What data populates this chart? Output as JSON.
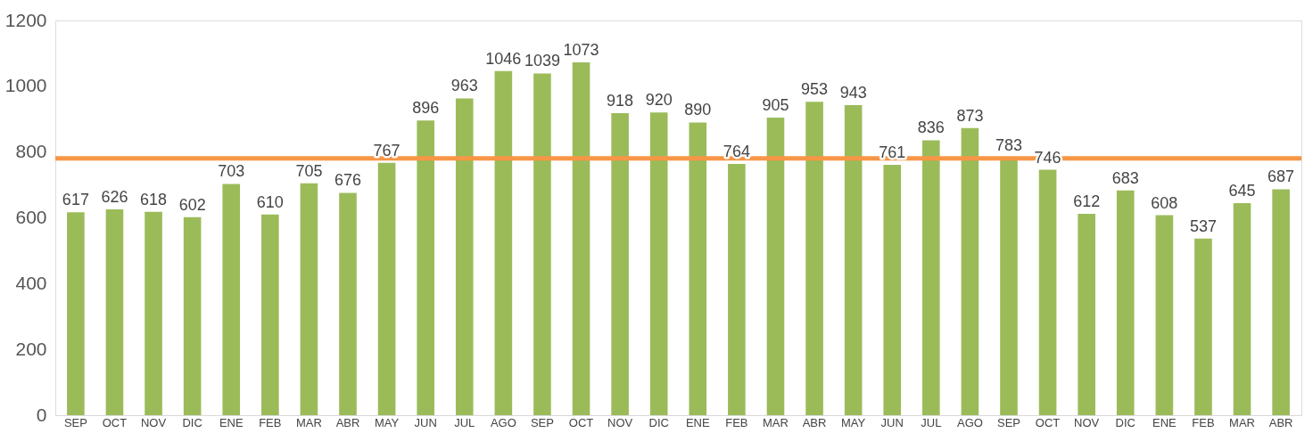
{
  "chart_data": {
    "type": "bar",
    "categories": [
      "SEP",
      "OCT",
      "NOV",
      "DIC",
      "ENE",
      "FEB",
      "MAR",
      "ABR",
      "MAY",
      "JUN",
      "JUL",
      "AGO",
      "SEP",
      "OCT",
      "NOV",
      "DIC",
      "ENE",
      "FEB",
      "MAR",
      "ABR",
      "MAY",
      "JUN",
      "JUL",
      "AGO",
      "SEP",
      "OCT",
      "NOV",
      "DIC",
      "ENE",
      "FEB",
      "MAR",
      "ABR"
    ],
    "values": [
      617,
      626,
      618,
      602,
      703,
      610,
      705,
      676,
      767,
      896,
      963,
      1046,
      1039,
      1073,
      918,
      920,
      890,
      764,
      905,
      953,
      943,
      761,
      836,
      873,
      783,
      746,
      612,
      683,
      608,
      537,
      645,
      687
    ],
    "color": "#9bbb59",
    "ylim": [
      0,
      1200
    ],
    "yticks": [
      0,
      200,
      400,
      600,
      800,
      1000,
      1200
    ],
    "grid": false,
    "data_labels": true,
    "ref_lines": [
      {
        "axis": "y",
        "value": 781,
        "color": "#f79646"
      }
    ]
  }
}
